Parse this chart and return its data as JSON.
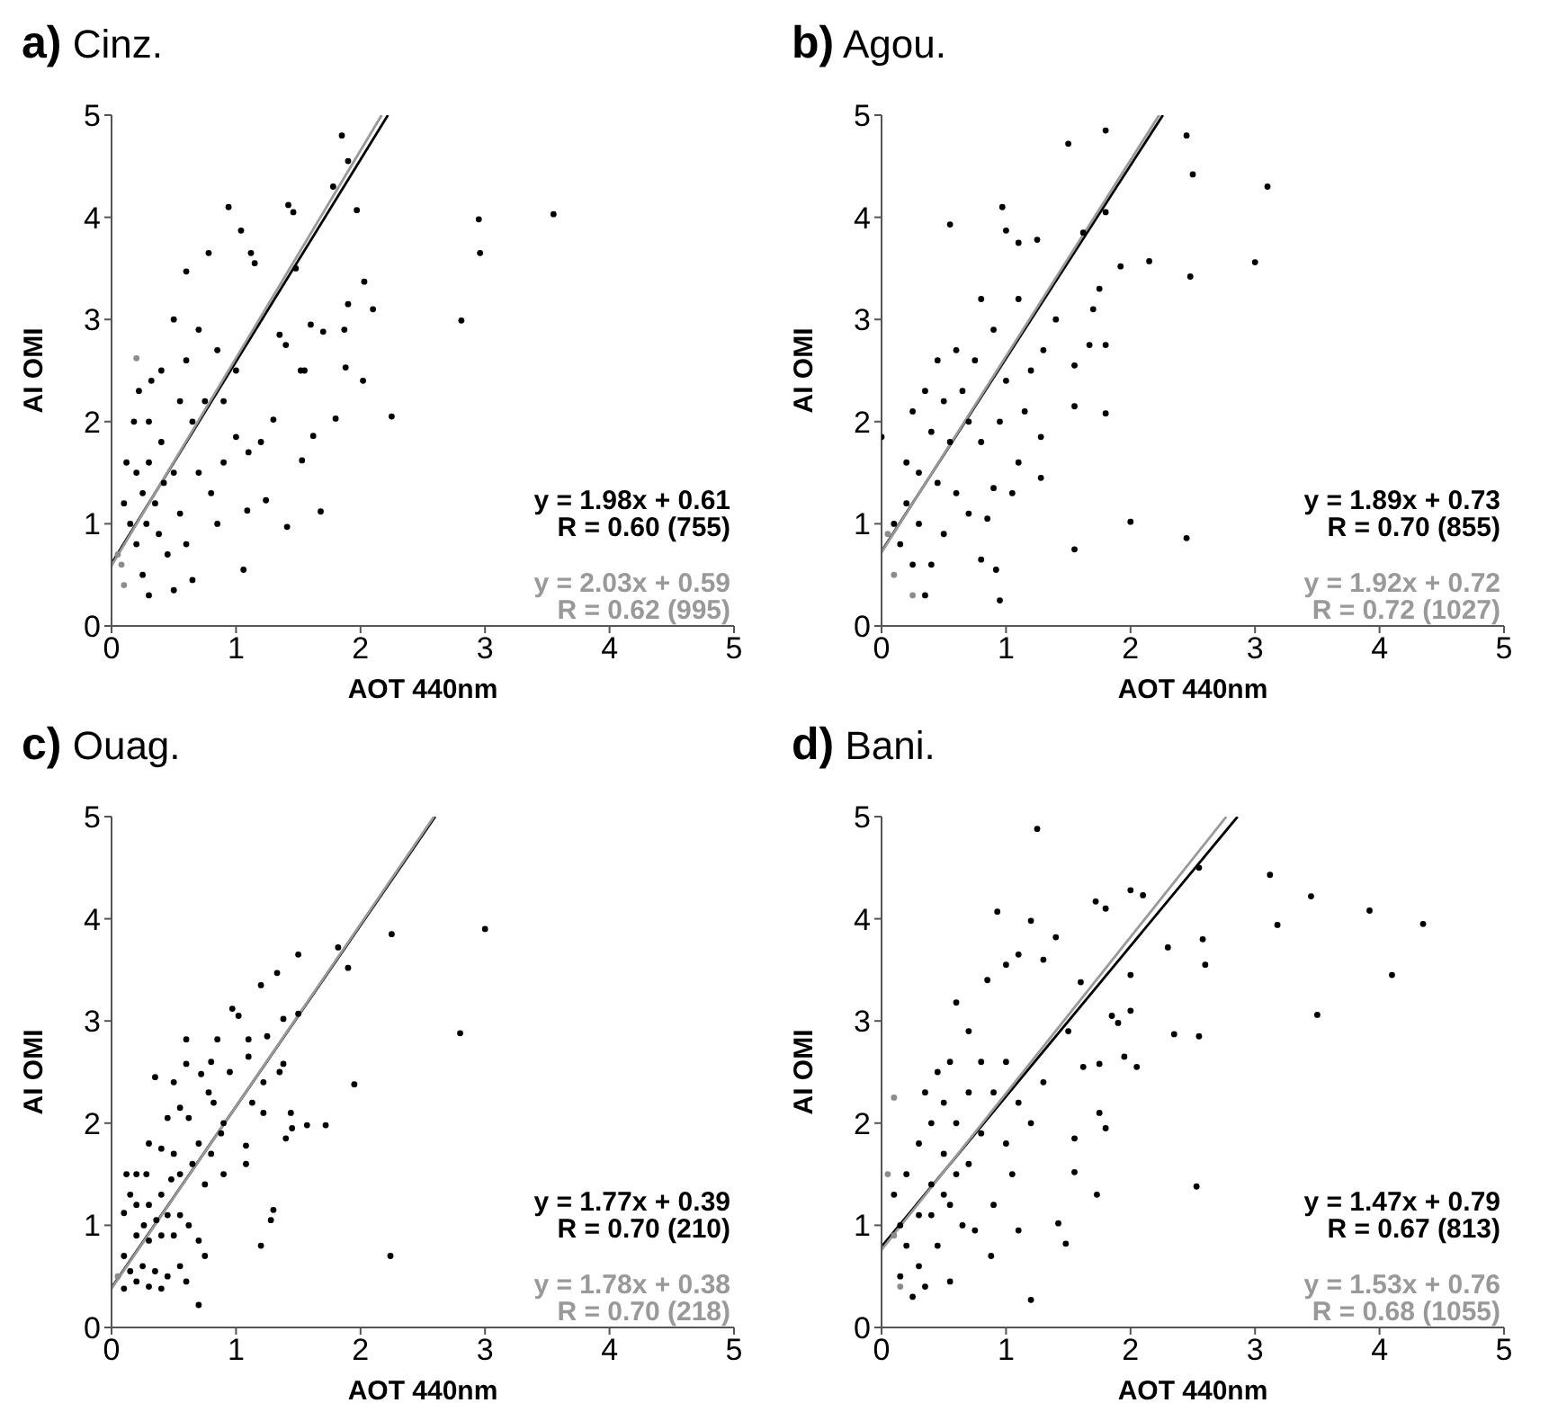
{
  "chart_data": [
    {
      "type": "scatter",
      "title": "a) Cinz.",
      "xlabel": "AOT 440nm",
      "ylabel": "AI OMI",
      "xlim": [
        0,
        5
      ],
      "ylim": [
        0,
        5
      ],
      "xticks": [
        0,
        1,
        2,
        3,
        4,
        5
      ],
      "yticks": [
        0,
        1,
        2,
        3,
        4,
        5
      ],
      "marker": "circle",
      "annotations": [
        "y = 1.98x + 0.61",
        "R = 0.60 (755)",
        "y = 2.03x + 0.59",
        "R = 0.62 (995)"
      ],
      "series": [
        {
          "color": "#8c8c8c",
          "x": [
            0.2,
            0.05,
            0.1,
            0.08
          ],
          "values": [
            2.62,
            0.7,
            0.4,
            0.6
          ]
        },
        {
          "color": "#000000",
          "x": [
            1.85,
            1.9,
            1.78,
            1.97,
            0.94,
            1.42,
            1.46,
            1.04,
            2.95,
            2.96,
            3.55,
            2.81,
            2.03,
            2.1,
            1.9,
            1.87,
            1.88,
            2.02,
            2.25,
            1.8,
            1.62,
            1.53,
            1.68,
            1.41,
            1.06,
            1.09,
            1.24,
            1.3,
            1.55,
            1.52,
            1.6,
            1.7,
            1.35,
            1.4,
            1.48,
            1.15,
            1.12,
            0.78,
            0.6,
            1.1,
            1.2,
            1.0,
            0.9,
            1.0,
            0.85,
            0.7,
            0.5,
            0.4,
            0.3,
            0.2,
            0.15,
            0.25,
            0.3,
            0.35,
            0.4,
            0.5,
            0.55,
            0.6,
            0.65,
            0.45,
            0.5,
            0.2,
            0.1,
            0.12,
            0.18,
            0.22,
            0.32,
            0.28,
            0.38,
            0.42,
            0.7,
            0.75,
            0.8,
            0.85,
            0.6,
            0.65,
            0.55,
            0.9,
            0.3,
            0.25
          ],
          "values": [
            4.8,
            4.55,
            4.3,
            4.07,
            4.1,
            4.12,
            4.05,
            3.87,
            3.98,
            3.65,
            4.03,
            2.99,
            3.37,
            3.1,
            3.15,
            2.9,
            2.53,
            2.4,
            2.05,
            2.03,
            1.86,
            1.62,
            1.12,
            0.97,
            0.55,
            1.13,
            1.23,
            2.02,
            2.5,
            2.5,
            2.95,
            2.88,
            2.85,
            2.75,
            3.5,
            3.55,
            3.65,
            3.65,
            3.47,
            1.7,
            1.8,
            1.85,
            2.2,
            2.5,
            2.7,
            2.9,
            3.0,
            2.5,
            2.0,
            1.5,
            1.0,
            0.5,
            0.3,
            1.2,
            1.8,
            1.5,
            2.2,
            0.8,
            0.45,
            0.7,
            0.35,
            0.8,
            1.2,
            1.6,
            2.0,
            2.3,
            2.4,
            1.0,
            0.9,
            1.4,
            1.5,
            2.2,
            1.3,
            1.0,
            2.6,
            2.0,
            1.1,
            1.6,
            1.6,
            1.3
          ]
        },
        {
          "type": "line",
          "marker": "none",
          "color": "#000000",
          "x": [
            0,
            2.22
          ],
          "values": [
            0.61,
            5
          ]
        },
        {
          "type": "line",
          "marker": "none",
          "color": "#999999",
          "x": [
            0,
            2.17
          ],
          "values": [
            0.59,
            5
          ]
        }
      ]
    },
    {
      "type": "scatter",
      "title": "b) Agou.",
      "xlabel": "AOT 440nm",
      "ylabel": "AI OMI",
      "xlim": [
        0,
        5
      ],
      "ylim": [
        0,
        5
      ],
      "xticks": [
        0,
        1,
        2,
        3,
        4,
        5
      ],
      "yticks": [
        0,
        1,
        2,
        3,
        4,
        5
      ],
      "marker": "circle",
      "annotations": [
        "y = 1.89x + 0.73",
        "R = 0.70 (855)",
        "y = 1.92x + 0.72",
        "R = 0.72 (1027)"
      ],
      "series": [
        {
          "color": "#8c8c8c",
          "x": [
            0.1,
            0.25,
            0.05
          ],
          "values": [
            0.5,
            0.3,
            0.9
          ]
        },
        {
          "color": "#000000",
          "x": [
            1.5,
            1.8,
            2.45,
            2.5,
            3.1,
            3.0,
            2.48,
            2.15,
            1.92,
            1.62,
            1.8,
            0.55,
            0.97,
            1.0,
            1.1,
            1.25,
            1.75,
            1.7,
            1.67,
            1.8,
            1.8,
            1.55,
            1.55,
            1.28,
            1.28,
            2.0,
            2.45,
            1.55,
            0.95,
            0.92,
            0.8,
            1.05,
            0.9,
            0.85,
            0.0,
            1.4,
            1.3,
            1.2,
            1.1,
            0.8,
            0.6,
            0.5,
            0.4,
            0.3,
            0.2,
            0.15,
            0.25,
            0.35,
            0.3,
            0.45,
            0.55,
            0.65,
            0.7,
            0.75,
            0.9,
            1.0,
            0.95,
            0.8,
            0.6,
            0.5,
            0.4,
            0.2,
            0.1,
            0.25,
            0.35,
            0.45,
            1.15,
            1.1,
            0.7
          ],
          "values": [
            4.72,
            4.85,
            4.8,
            4.42,
            4.3,
            3.56,
            3.42,
            3.57,
            3.52,
            3.85,
            4.05,
            3.93,
            4.1,
            3.87,
            3.75,
            3.78,
            3.3,
            3.1,
            2.75,
            2.75,
            2.08,
            2.15,
            2.55,
            1.85,
            1.45,
            1.02,
            0.86,
            0.75,
            0.25,
            0.55,
            0.65,
            1.3,
            1.35,
            1.05,
            1.85,
            3.0,
            2.7,
            2.5,
            3.2,
            3.2,
            2.7,
            2.2,
            1.9,
            1.5,
            1.2,
            0.8,
            0.6,
            0.3,
            1.0,
            1.4,
            1.8,
            2.3,
            2.0,
            2.6,
            2.9,
            2.4,
            2.0,
            1.8,
            1.3,
            0.9,
            0.6,
            1.6,
            1.0,
            2.1,
            2.3,
            2.6,
            2.1,
            1.6,
            1.1
          ]
        },
        {
          "type": "line",
          "marker": "none",
          "color": "#000000",
          "x": [
            0,
            2.26
          ],
          "values": [
            0.73,
            5
          ]
        },
        {
          "type": "line",
          "marker": "none",
          "color": "#999999",
          "x": [
            0,
            2.23
          ],
          "values": [
            0.72,
            5
          ]
        }
      ]
    },
    {
      "type": "scatter",
      "title": "c) Ouag.",
      "xlabel": "AOT 440nm",
      "ylabel": "AI OMI",
      "xlim": [
        0,
        5
      ],
      "ylim": [
        0,
        5
      ],
      "xticks": [
        0,
        1,
        2,
        3,
        4,
        5
      ],
      "yticks": [
        0,
        1,
        2,
        3,
        4,
        5
      ],
      "marker": "circle",
      "annotations": [
        "y = 1.77x + 0.39",
        "R = 0.70 (210)",
        "y = 1.78x + 0.38",
        "R = 0.70 (218)"
      ],
      "series": [
        {
          "color": "#8c8c8c",
          "x": [
            0.05
          ],
          "values": [
            0.5
          ]
        },
        {
          "color": "#000000",
          "x": [
            3.0,
            2.25,
            1.82,
            1.9,
            1.5,
            1.33,
            1.2,
            0.97,
            1.02,
            1.38,
            1.5,
            2.8,
            1.95,
            1.72,
            1.57,
            1.45,
            1.4,
            1.44,
            1.38,
            1.35,
            1.22,
            1.22,
            1.13,
            1.1,
            1.1,
            1.25,
            1.08,
            1.08,
            1.2,
            1.3,
            1.28,
            2.24,
            0.7,
            0.75,
            0.7,
            0.6,
            0.85,
            0.8,
            0.72,
            0.6,
            0.6,
            0.5,
            0.35,
            0.45,
            0.55,
            0.62,
            0.78,
            0.82,
            0.9,
            0.95,
            0.88,
            0.9,
            0.8,
            0.7,
            0.75,
            0.65,
            0.5,
            0.4,
            0.3,
            0.28,
            0.2,
            0.12,
            0.15,
            0.1,
            0.2,
            0.3,
            0.4,
            0.45,
            0.55,
            0.62,
            0.5,
            0.4,
            0.3,
            0.2,
            0.1,
            0.15,
            0.25,
            0.35,
            0.45,
            0.55,
            0.3,
            0.4,
            0.1,
            0.2,
            0.48,
            0.55,
            0.36,
            0.26
          ],
          "values": [
            3.9,
            3.85,
            3.72,
            3.52,
            3.65,
            3.47,
            3.35,
            3.12,
            3.05,
            3.02,
            3.07,
            2.88,
            2.38,
            1.98,
            1.98,
            1.95,
            1.85,
            2.1,
            2.58,
            2.5,
            2.4,
            2.1,
            2.2,
            2.65,
            2.82,
            2.85,
            1.78,
            1.6,
            0.8,
            1.15,
            1.05,
            0.7,
            0.22,
            0.7,
            0.85,
            0.45,
            2.82,
            2.6,
            2.48,
            2.82,
            2.58,
            2.4,
            2.45,
            2.05,
            2.15,
            2.05,
            2.3,
            2.2,
            2.0,
            2.5,
            1.9,
            1.5,
            1.7,
            1.8,
            1.4,
            1.6,
            1.7,
            1.75,
            1.8,
            1.5,
            1.5,
            1.5,
            1.3,
            1.12,
            1.2,
            1.2,
            1.3,
            1.1,
            1.1,
            1.0,
            0.9,
            0.9,
            0.85,
            0.9,
            0.7,
            0.55,
            0.6,
            0.55,
            0.5,
            0.6,
            0.4,
            0.38,
            0.38,
            0.45,
            1.45,
            1.5,
            1.05,
            1.0
          ]
        },
        {
          "type": "line",
          "marker": "none",
          "color": "#000000",
          "x": [
            0,
            2.6
          ],
          "values": [
            0.39,
            5
          ]
        },
        {
          "type": "line",
          "marker": "none",
          "color": "#999999",
          "x": [
            0,
            2.59
          ],
          "values": [
            0.38,
            5
          ]
        }
      ]
    },
    {
      "type": "scatter",
      "title": "d) Bani.",
      "xlabel": "AOT 440nm",
      "ylabel": "AI OMI",
      "xlim": [
        0,
        5
      ],
      "ylim": [
        0,
        5
      ],
      "xticks": [
        0,
        1,
        2,
        3,
        4,
        5
      ],
      "yticks": [
        0,
        1,
        2,
        3,
        4,
        5
      ],
      "marker": "circle",
      "annotations": [
        "y = 1.47x + 0.79",
        "R = 0.67 (813)",
        "y = 1.53x + 0.76",
        "R = 0.68 (1055)"
      ],
      "series": [
        {
          "color": "#8c8c8c",
          "x": [
            0.1,
            0.05,
            0.1,
            0.15
          ],
          "values": [
            2.25,
            1.5,
            0.9,
            0.4
          ]
        },
        {
          "color": "#000000",
          "x": [
            1.25,
            2.55,
            3.12,
            3.45,
            3.92,
            4.35,
            3.18,
            4.1,
            3.5,
            2.55,
            2.35,
            2.3,
            2.58,
            2.6,
            2.1,
            2.0,
            1.8,
            1.72,
            0.93,
            1.2,
            1.4,
            2.0,
            2.0,
            1.95,
            2.05,
            1.85,
            1.9,
            1.75,
            1.62,
            1.75,
            1.8,
            1.55,
            1.55,
            1.73,
            2.53,
            1.42,
            1.48,
            1.1,
            1.2,
            0.88,
            1.3,
            1.1,
            1.0,
            0.85,
            0.6,
            0.7,
            1.6,
            1.5,
            1.3,
            1.2,
            1.0,
            0.9,
            0.8,
            0.7,
            0.6,
            0.5,
            0.4,
            0.3,
            0.2,
            0.15,
            0.25,
            0.35,
            0.45,
            0.55,
            0.6,
            0.5,
            0.4,
            0.3,
            0.2,
            0.1,
            0.15,
            0.3,
            0.4,
            0.5,
            0.65,
            0.7,
            0.8,
            1.0,
            1.1,
            1.05,
            0.9,
            0.75,
            0.55,
            0.35,
            0.45,
            0.55
          ],
          "values": [
            4.88,
            4.5,
            4.43,
            4.22,
            4.08,
            3.95,
            3.94,
            3.45,
            3.06,
            2.85,
            2.87,
            3.72,
            3.8,
            3.55,
            4.23,
            4.28,
            4.1,
            4.17,
            4.07,
            3.98,
            3.82,
            3.45,
            3.1,
            2.65,
            2.55,
            3.05,
            2.98,
            2.58,
            2.55,
            2.1,
            1.95,
            1.85,
            1.52,
            1.3,
            1.38,
            1.02,
            0.82,
            0.95,
            0.27,
            0.7,
            3.6,
            3.65,
            3.55,
            3.4,
            3.18,
            2.9,
            3.38,
            2.9,
            2.4,
            2.0,
            1.8,
            2.3,
            2.6,
            2.3,
            2.0,
            1.7,
            1.4,
            1.1,
            0.8,
            0.5,
            0.3,
            0.4,
            0.8,
            1.2,
            1.5,
            2.2,
            2.0,
            1.8,
            1.5,
            1.3,
            1.0,
            0.6,
            1.1,
            1.3,
            1.0,
            1.6,
            1.9,
            2.6,
            2.2,
            1.5,
            1.2,
            0.95,
            0.45,
            2.3,
            2.5,
            2.6
          ]
        },
        {
          "type": "line",
          "marker": "none",
          "color": "#000000",
          "x": [
            0,
            2.86
          ],
          "values": [
            0.79,
            5
          ]
        },
        {
          "type": "line",
          "marker": "none",
          "color": "#999999",
          "x": [
            0,
            2.77
          ],
          "values": [
            0.76,
            5
          ]
        }
      ]
    }
  ]
}
